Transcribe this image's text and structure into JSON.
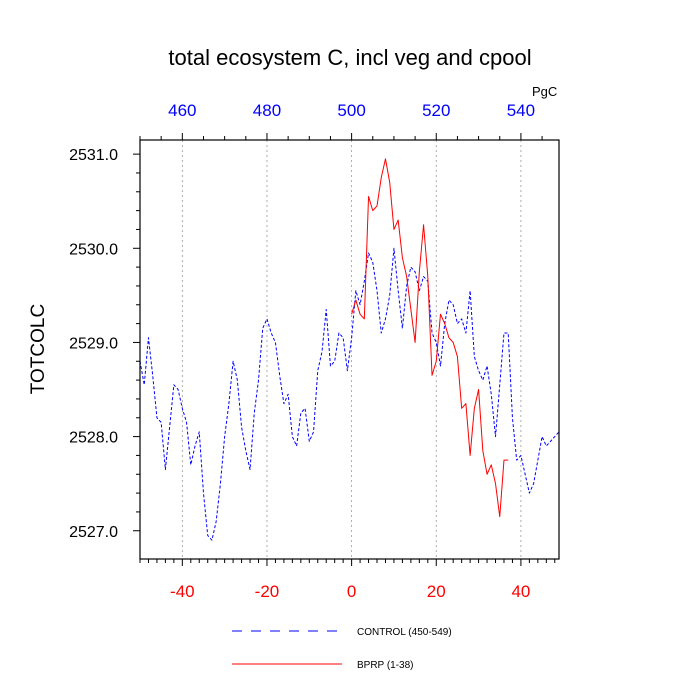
{
  "chart_data": {
    "type": "line",
    "title": "total ecosystem C, incl veg and cpool",
    "ylabel": "TOTCOLC",
    "top_axis_units": "PgC",
    "xlim": [
      -50,
      49
    ],
    "ylim": [
      2526.7,
      2531.15
    ],
    "y_ticks": [
      2527.0,
      2528.0,
      2529.0,
      2530.0,
      2531.0
    ],
    "y_tick_labels": [
      "2527.0",
      "2528.0",
      "2529.0",
      "2530.0",
      "2531.0"
    ],
    "x_ticks": [
      -40,
      -20,
      0,
      20,
      40
    ],
    "x_tick_labels": [
      "-40",
      "-20",
      "0",
      "20",
      "40"
    ],
    "top_ticks": [
      460,
      480,
      500,
      520,
      540
    ],
    "top_tick_labels": [
      "460",
      "480",
      "500",
      "520",
      "540"
    ],
    "top_offset": 500,
    "grid": "vertical dashed at major x ticks",
    "legend_position": "bottom",
    "series": [
      {
        "name": "CONTROL (450-549)",
        "color": "#0000ff",
        "style": "dashed",
        "x_start": -50,
        "values": [
          2528.8,
          2528.55,
          2529.05,
          2528.65,
          2528.2,
          2528.15,
          2527.65,
          2528.1,
          2528.55,
          2528.5,
          2528.3,
          2528.15,
          2527.7,
          2527.9,
          2528.05,
          2527.4,
          2526.95,
          2526.9,
          2527.1,
          2527.5,
          2528.0,
          2528.35,
          2528.8,
          2528.6,
          2528.1,
          2527.85,
          2527.65,
          2528.25,
          2528.6,
          2529.15,
          2529.25,
          2529.1,
          2529.0,
          2528.65,
          2528.35,
          2528.45,
          2528.0,
          2527.9,
          2528.25,
          2528.3,
          2527.95,
          2528.05,
          2528.7,
          2528.9,
          2529.35,
          2528.75,
          2528.8,
          2529.1,
          2529.05,
          2528.7,
          2529.05,
          2529.55,
          2529.4,
          2529.65,
          2529.95,
          2529.85,
          2529.55,
          2529.1,
          2529.25,
          2529.5,
          2530.0,
          2529.55,
          2529.15,
          2529.6,
          2529.8,
          2529.75,
          2529.55,
          2529.7,
          2529.65,
          2529.1,
          2529.0,
          2528.75,
          2529.2,
          2529.45,
          2529.4,
          2529.2,
          2529.25,
          2529.1,
          2529.55,
          2528.85,
          2528.7,
          2528.6,
          2528.75,
          2528.45,
          2528.0,
          2528.55,
          2529.1,
          2529.1,
          2528.2,
          2527.75,
          2527.8,
          2527.6,
          2527.4,
          2527.5,
          2527.75,
          2528.0,
          2527.9,
          2527.95,
          2528.0,
          2528.05
        ]
      },
      {
        "name": "BPRP (1-38)",
        "color": "#ff0000",
        "style": "solid",
        "x_start": 0,
        "values": [
          2529.3,
          2529.45,
          2529.3,
          2529.25,
          2530.55,
          2530.4,
          2530.45,
          2530.75,
          2530.95,
          2530.7,
          2530.2,
          2530.3,
          2529.9,
          2529.7,
          2529.35,
          2529.0,
          2529.75,
          2530.25,
          2529.7,
          2528.65,
          2528.8,
          2529.3,
          2529.2,
          2529.05,
          2529.0,
          2528.85,
          2528.3,
          2528.35,
          2527.8,
          2528.3,
          2528.5,
          2527.85,
          2527.6,
          2527.7,
          2527.5,
          2527.15,
          2527.75,
          2527.75
        ]
      }
    ]
  }
}
